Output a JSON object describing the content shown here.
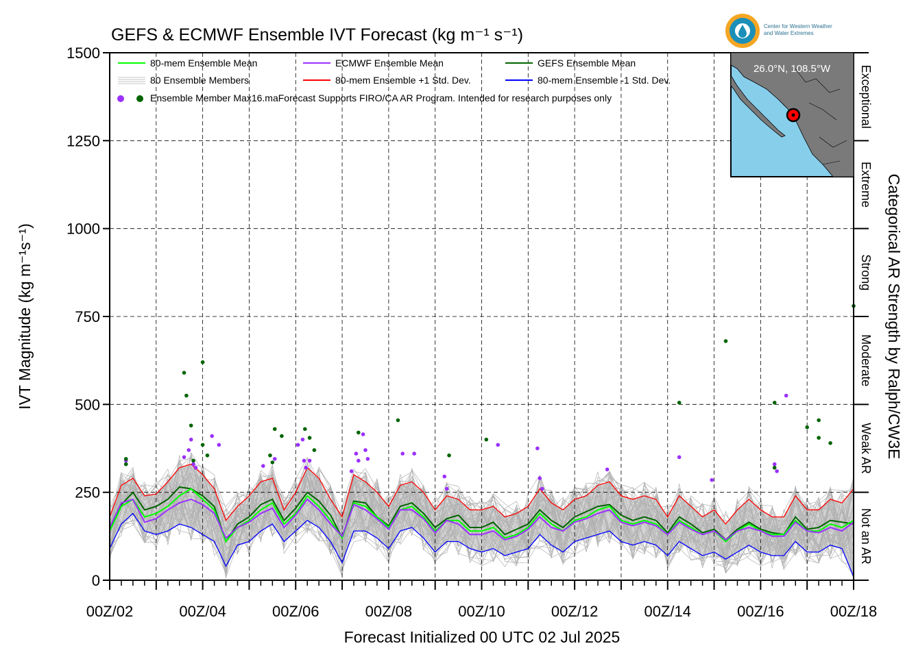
{
  "chart_data": {
    "type": "line",
    "title": "GEFS & ECMWF Ensemble IVT Forecast (kg m⁻¹ s⁻¹)",
    "xlabel": "Forecast Initialized 00 UTC 02 Jul 2025",
    "ylabel": "IVT Magnitude (kg m⁻¹s⁻¹)",
    "right_label": "Categorical AR Strength by Ralph/CW3E",
    "x_unit": "days since 00Z/02 Jul 2025",
    "xlim": [
      0,
      16
    ],
    "ylim": [
      0,
      1500
    ],
    "yticks": [
      0,
      250,
      500,
      750,
      1000,
      1250,
      1500
    ],
    "xtick_labels": [
      "00Z/02",
      "00Z/04",
      "00Z/06",
      "00Z/08",
      "00Z/10",
      "00Z/12",
      "00Z/14",
      "00Z/16",
      "00Z/18"
    ],
    "categories": [
      {
        "label": "Not an AR",
        "range": [
          0,
          250
        ]
      },
      {
        "label": "Weak AR",
        "range": [
          250,
          500
        ]
      },
      {
        "label": "Moderate",
        "range": [
          500,
          750
        ]
      },
      {
        "label": "Strong",
        "range": [
          750,
          1000
        ]
      },
      {
        "label": "Extreme",
        "range": [
          1000,
          1250
        ]
      },
      {
        "label": "Exceptional",
        "range": [
          1250,
          1500
        ]
      }
    ],
    "grid": true,
    "legend_position": "top-left",
    "legend": {
      "mean80": "80-mem Ensemble Mean",
      "members": "80 Ensemble Members",
      "ecmwf_mean": "ECMWF Ensemble Mean",
      "plus_sd": "80-mem Ensemble +1 Std. Dev.",
      "gefs_mean": "GEFS Ensemble Mean",
      "minus_sd": "80-mem Ensemble -1 Std. Dev.",
      "max_note": "Ensemble Member Max16.maForecast Supports FIRO/CA AR Program. Intended for research purposes only"
    },
    "inset": {
      "label": "26.0°N, 108.5°W",
      "org": [
        "Center for Western Weather",
        "and Water Extremes"
      ]
    },
    "colors": {
      "mean80": "#00ff00",
      "ecmwf_mean": "#9b30ff",
      "gefs_mean": "#006400",
      "plus_sd": "#ff0000",
      "minus_sd": "#0000ff",
      "members": "#b0b0b0",
      "band": "#d3d3d3",
      "ocean": "#87ceeb",
      "land": "#7a7a7a"
    },
    "x": [
      0,
      0.25,
      0.5,
      0.75,
      1,
      1.25,
      1.5,
      1.75,
      2,
      2.25,
      2.5,
      2.75,
      3,
      3.25,
      3.5,
      3.75,
      4,
      4.25,
      4.5,
      4.75,
      5,
      5.25,
      5.5,
      5.75,
      6,
      6.25,
      6.5,
      6.75,
      7,
      7.25,
      7.5,
      7.75,
      8,
      8.25,
      8.5,
      8.75,
      9,
      9.25,
      9.5,
      9.75,
      10,
      10.25,
      10.5,
      10.75,
      11,
      11.25,
      11.5,
      11.75,
      12,
      12.25,
      12.5,
      12.75,
      13,
      13.25,
      13.5,
      13.75,
      14,
      14.25,
      14.5,
      14.75,
      15,
      15.25,
      15.5,
      15.75,
      16
    ],
    "series": [
      {
        "name": "80-mem Ensemble +1 Std. Dev.",
        "key": "plus_sd",
        "values": [
          180,
          270,
          290,
          240,
          245,
          280,
          320,
          330,
          300,
          260,
          170,
          210,
          240,
          280,
          290,
          200,
          250,
          320,
          290,
          230,
          180,
          300,
          280,
          250,
          210,
          270,
          280,
          250,
          200,
          240,
          230,
          200,
          200,
          210,
          180,
          190,
          210,
          260,
          220,
          200,
          230,
          240,
          270,
          280,
          240,
          230,
          240,
          230,
          180,
          240,
          210,
          180,
          200,
          160,
          200,
          230,
          200,
          180,
          180,
          240,
          200,
          200,
          230,
          220,
          260
        ]
      },
      {
        "name": "80-mem Ensemble Mean",
        "key": "mean80",
        "values": [
          140,
          210,
          230,
          180,
          190,
          210,
          240,
          260,
          230,
          200,
          110,
          150,
          170,
          200,
          220,
          160,
          190,
          240,
          210,
          170,
          120,
          220,
          210,
          180,
          150,
          200,
          210,
          180,
          140,
          170,
          170,
          140,
          140,
          150,
          120,
          130,
          150,
          190,
          160,
          140,
          170,
          180,
          200,
          210,
          170,
          160,
          170,
          160,
          130,
          170,
          150,
          130,
          140,
          110,
          140,
          160,
          140,
          130,
          130,
          170,
          140,
          140,
          160,
          150,
          170
        ]
      },
      {
        "name": "ECMWF Ensemble Mean",
        "key": "ecmwf_mean",
        "values": [
          150,
          220,
          230,
          165,
          175,
          200,
          220,
          230,
          215,
          190,
          120,
          150,
          165,
          190,
          205,
          150,
          185,
          230,
          200,
          160,
          125,
          215,
          200,
          175,
          145,
          200,
          200,
          175,
          135,
          170,
          160,
          130,
          130,
          140,
          115,
          125,
          145,
          180,
          150,
          140,
          165,
          175,
          190,
          200,
          165,
          155,
          165,
          155,
          130,
          165,
          145,
          130,
          140,
          115,
          140,
          150,
          140,
          125,
          125,
          165,
          140,
          135,
          150,
          140,
          165
        ]
      },
      {
        "name": "GEFS Ensemble Mean",
        "key": "gefs_mean",
        "values": [
          145,
          215,
          250,
          200,
          210,
          230,
          265,
          260,
          240,
          210,
          110,
          160,
          180,
          215,
          230,
          170,
          205,
          250,
          225,
          185,
          120,
          225,
          220,
          180,
          155,
          210,
          220,
          190,
          150,
          175,
          185,
          150,
          150,
          165,
          130,
          145,
          160,
          200,
          170,
          150,
          180,
          195,
          210,
          215,
          185,
          170,
          180,
          170,
          135,
          180,
          160,
          135,
          145,
          115,
          145,
          165,
          145,
          135,
          130,
          180,
          145,
          150,
          170,
          165,
          160
        ]
      },
      {
        "name": "80-mem Ensemble -1 Std. Dev.",
        "key": "minus_sd",
        "values": [
          90,
          160,
          190,
          140,
          130,
          140,
          160,
          150,
          130,
          110,
          40,
          100,
          110,
          140,
          160,
          110,
          140,
          170,
          150,
          110,
          50,
          140,
          140,
          120,
          90,
          140,
          150,
          120,
          80,
          110,
          110,
          90,
          80,
          90,
          70,
          80,
          90,
          130,
          100,
          80,
          110,
          120,
          130,
          140,
          110,
          100,
          110,
          100,
          70,
          110,
          90,
          70,
          80,
          60,
          80,
          100,
          80,
          70,
          70,
          110,
          80,
          80,
          100,
          90,
          10
        ]
      }
    ],
    "member_max": {
      "ecmwf": [
        [
          0.35,
          340
        ],
        [
          1.6,
          350
        ],
        [
          1.7,
          370
        ],
        [
          1.75,
          400
        ],
        [
          1.8,
          330
        ],
        [
          1.85,
          320
        ],
        [
          2.2,
          410
        ],
        [
          2.35,
          385
        ],
        [
          3.3,
          325
        ],
        [
          3.55,
          345
        ],
        [
          4.05,
          385
        ],
        [
          4.15,
          400
        ],
        [
          4.18,
          340
        ],
        [
          4.22,
          320
        ],
        [
          4.3,
          340
        ],
        [
          5.2,
          310
        ],
        [
          5.3,
          360
        ],
        [
          5.35,
          340
        ],
        [
          5.45,
          415
        ],
        [
          5.5,
          370
        ],
        [
          5.55,
          345
        ],
        [
          6.3,
          360
        ],
        [
          6.55,
          360
        ],
        [
          7.2,
          295
        ],
        [
          7.25,
          260
        ],
        [
          8.35,
          385
        ],
        [
          9.2,
          375
        ],
        [
          9.25,
          290
        ],
        [
          9.3,
          260
        ],
        [
          10.7,
          315
        ],
        [
          12.25,
          350
        ],
        [
          12.95,
          285
        ],
        [
          14.3,
          330
        ],
        [
          14.35,
          310
        ],
        [
          14.55,
          525
        ]
      ],
      "gefs": [
        [
          0.35,
          345
        ],
        [
          0.35,
          330
        ],
        [
          1.6,
          590
        ],
        [
          1.65,
          525
        ],
        [
          1.75,
          440
        ],
        [
          1.8,
          340
        ],
        [
          2.0,
          620
        ],
        [
          2.0,
          385
        ],
        [
          2.1,
          355
        ],
        [
          3.55,
          430
        ],
        [
          3.7,
          410
        ],
        [
          3.45,
          355
        ],
        [
          3.5,
          335
        ],
        [
          4.2,
          430
        ],
        [
          4.3,
          405
        ],
        [
          4.4,
          370
        ],
        [
          5.35,
          420
        ],
        [
          6.2,
          455
        ],
        [
          7.3,
          355
        ],
        [
          8.1,
          400
        ],
        [
          12.25,
          505
        ],
        [
          13.25,
          680
        ],
        [
          14.3,
          505
        ],
        [
          14.3,
          320
        ],
        [
          15.0,
          435
        ],
        [
          15.25,
          455
        ],
        [
          15.25,
          405
        ],
        [
          15.5,
          390
        ],
        [
          16.0,
          780
        ]
      ]
    }
  }
}
